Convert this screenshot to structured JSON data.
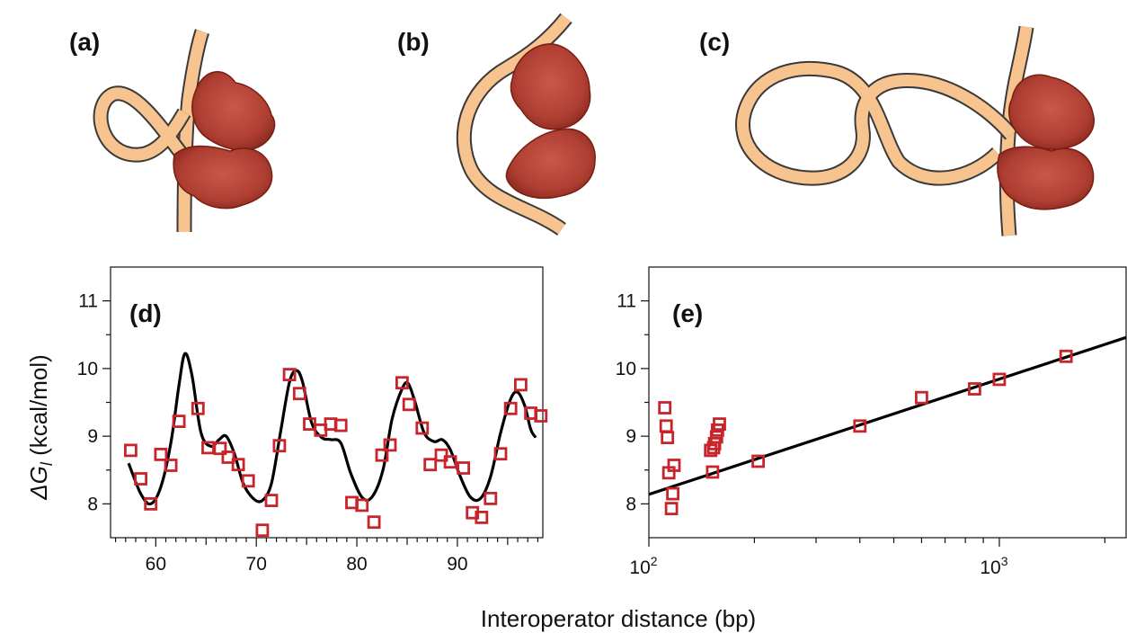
{
  "panels": {
    "a": "(a)",
    "b": "(b)",
    "c": "(c)",
    "d": "(d)",
    "e": "(e)"
  },
  "colors": {
    "marker": "#c8242b",
    "fit_line": "#000000",
    "dna_fill": "#f7c48f",
    "dna_outline": "#3a3a3a",
    "protein": "#b5473a"
  },
  "illustrations": [
    {
      "panel": "a",
      "description_icon": "dna-small-loop-with-repressor"
    },
    {
      "panel": "b",
      "description_icon": "dna-wrapped-loop-with-repressor"
    },
    {
      "panel": "c",
      "description_icon": "dna-figure-eight-loop-with-repressor"
    }
  ],
  "shared": {
    "xlabel": "Interoperator distance (bp)",
    "ylabel_main": "ΔG",
    "ylabel_sub": "l",
    "ylabel_rest": " (kcal/mol)"
  },
  "chart_data": [
    {
      "id": "d",
      "type": "scatter",
      "scale": "linear",
      "xlim": [
        55.5,
        98.5
      ],
      "ylim": [
        7.5,
        11.5
      ],
      "xticks": [
        60,
        70,
        80,
        90
      ],
      "xtick_labels": [
        "60",
        "70",
        "80",
        "90"
      ],
      "yticks": [
        8,
        9,
        10,
        11
      ],
      "ytick_labels": [
        "8",
        "9",
        "10",
        "11"
      ],
      "series": [
        {
          "kind": "points",
          "marker": "square",
          "x": [
            57.5,
            58.5,
            59.5,
            60.5,
            61.5,
            62.3,
            64.2,
            65.2,
            66.4,
            67.2,
            68.2,
            69.2,
            70.6,
            71.5,
            72.3,
            73.3,
            74.3,
            75.3,
            76.4,
            77.4,
            78.4,
            79.5,
            80.5,
            81.7,
            82.5,
            83.3,
            84.5,
            85.2,
            86.5,
            87.3,
            88.4,
            89.3,
            90.6,
            91.5,
            92.4,
            93.3,
            94.3,
            95.3,
            96.3,
            97.3,
            98.3
          ],
          "y": [
            8.79,
            8.37,
            8.0,
            8.73,
            8.57,
            9.22,
            9.41,
            8.83,
            8.82,
            8.69,
            8.58,
            8.34,
            7.61,
            8.05,
            8.86,
            9.91,
            9.63,
            9.18,
            9.09,
            9.18,
            9.16,
            8.02,
            7.98,
            7.73,
            8.72,
            8.87,
            9.79,
            9.47,
            9.12,
            8.58,
            8.72,
            8.62,
            8.53,
            7.87,
            7.8,
            8.08,
            8.74,
            9.41,
            9.76,
            9.34,
            9.3
          ]
        },
        {
          "kind": "fit",
          "x": [
            57.3,
            58.5,
            59.5,
            60.5,
            61.5,
            62.3,
            62.9,
            63.6,
            64.5,
            65.5,
            66.3,
            67.0,
            67.8,
            68.7,
            69.7,
            70.6,
            71.5,
            72.4,
            73.3,
            74.0,
            74.6,
            75.5,
            76.5,
            77.4,
            78.4,
            79.4,
            80.5,
            81.5,
            82.6,
            83.5,
            84.5,
            85.1,
            85.8,
            86.7,
            87.7,
            88.5,
            89.3,
            90.3,
            91.3,
            92.3,
            93.3,
            94.3,
            95.3,
            96.0,
            96.7,
            97.3,
            97.8
          ],
          "y": [
            8.6,
            8.15,
            8.0,
            8.25,
            8.9,
            9.75,
            10.22,
            9.9,
            9.05,
            8.85,
            8.95,
            9.0,
            8.75,
            8.3,
            8.08,
            8.05,
            8.3,
            9.05,
            9.8,
            9.97,
            9.8,
            9.2,
            8.98,
            8.95,
            8.9,
            8.45,
            8.1,
            8.1,
            8.5,
            9.25,
            9.7,
            9.78,
            9.5,
            9.05,
            8.92,
            8.95,
            8.8,
            8.4,
            8.1,
            8.08,
            8.4,
            9.05,
            9.55,
            9.65,
            9.45,
            9.1,
            8.98
          ]
        }
      ]
    },
    {
      "id": "e",
      "type": "scatter",
      "scale": "log-x",
      "xlim": [
        100,
        2300
      ],
      "ylim": [
        7.5,
        11.5
      ],
      "xticks": [
        100,
        1000
      ],
      "xtick_labels_base": [
        "10",
        "10"
      ],
      "xtick_labels_exp": [
        "2",
        "3"
      ],
      "yticks": [
        8,
        9,
        10,
        11
      ],
      "ytick_labels": [
        "8",
        "9",
        "10",
        "11"
      ],
      "series": [
        {
          "kind": "points",
          "marker": "square",
          "x": [
            111,
            112,
            113,
            114,
            116,
            117,
            118,
            150,
            152,
            153,
            154,
            156,
            157,
            159,
            205,
            400,
            600,
            850,
            1000,
            1550
          ],
          "y": [
            9.42,
            9.15,
            8.98,
            8.46,
            7.93,
            8.15,
            8.57,
            8.79,
            8.47,
            8.83,
            8.89,
            8.99,
            9.09,
            9.18,
            8.63,
            9.15,
            9.57,
            9.7,
            9.84,
            10.18
          ]
        },
        {
          "kind": "fit",
          "x": [
            100,
            2300
          ],
          "y": [
            8.14,
            10.46
          ]
        }
      ]
    }
  ]
}
